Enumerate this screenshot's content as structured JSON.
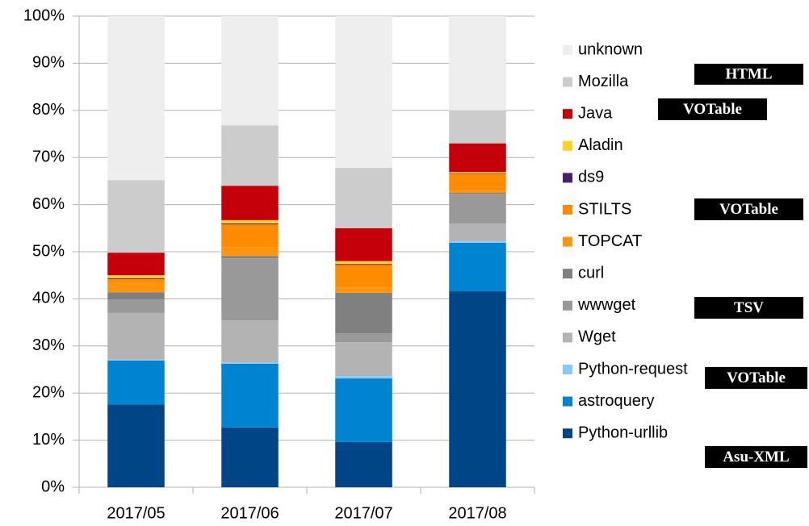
{
  "chart_data": {
    "type": "bar",
    "stacked": true,
    "categories": [
      "2017/05",
      "2017/06",
      "2017/07",
      "2017/08"
    ],
    "ylim": [
      0,
      100
    ],
    "yticks": [
      {
        "value": 0,
        "label": "0%"
      },
      {
        "value": 10,
        "label": "10%"
      },
      {
        "value": 20,
        "label": "20%"
      },
      {
        "value": 30,
        "label": "30%"
      },
      {
        "value": 40,
        "label": "40%"
      },
      {
        "value": 50,
        "label": "50%"
      },
      {
        "value": 60,
        "label": "60%"
      },
      {
        "value": 70,
        "label": "70%"
      },
      {
        "value": 80,
        "label": "80%"
      },
      {
        "value": 90,
        "label": "90%"
      },
      {
        "value": 100,
        "label": "100%"
      }
    ],
    "grid": true,
    "legend": "right",
    "series": [
      {
        "name": "Python-urllib",
        "color": "#004586",
        "values": [
          17.6,
          12.7,
          9.6,
          41.6
        ]
      },
      {
        "name": "astroquery",
        "color": "#0084d1",
        "values": [
          9.3,
          13.5,
          13.5,
          10.3
        ]
      },
      {
        "name": "Python-request",
        "color": "#83caff",
        "values": [
          0.2,
          0.3,
          0.5,
          0.3
        ]
      },
      {
        "name": "Wget",
        "color": "#b3b3b3",
        "values": [
          9.9,
          8.9,
          7.2,
          3.8
        ]
      },
      {
        "name": "wwwget",
        "color": "#999999",
        "values": [
          2.9,
          13.2,
          1.9,
          6.3
        ]
      },
      {
        "name": "curl",
        "color": "#808080",
        "values": [
          1.5,
          0.5,
          8.6,
          0.2
        ]
      },
      {
        "name": "TOPCAT",
        "color": "#ff950e",
        "values": [
          2.1,
          1.9,
          1.1,
          0.5
        ]
      },
      {
        "name": "STILTS",
        "color": "#ff8c00",
        "values": [
          0.7,
          4.8,
          4.8,
          3.5
        ]
      },
      {
        "name": "ds9",
        "color": "#4b1f6f",
        "values": [
          0.2,
          0.2,
          0.2,
          0.1
        ]
      },
      {
        "name": "Aladin",
        "color": "#ffd320",
        "values": [
          0.6,
          0.7,
          0.6,
          0.3
        ]
      },
      {
        "name": "Java",
        "color": "#c5000b",
        "values": [
          4.8,
          7.3,
          7.0,
          6.1
        ]
      },
      {
        "name": "Mozilla",
        "color": "#cccccc",
        "values": [
          15.4,
          12.8,
          12.8,
          7.0
        ]
      },
      {
        "name": "unknown",
        "color": "#eeeeee",
        "values": [
          34.8,
          23.2,
          32.2,
          20.0
        ]
      }
    ],
    "annotations": [
      "HTML",
      "VOTable",
      "VOTable",
      "TSV",
      "VOTable",
      "Asu-XML"
    ]
  }
}
